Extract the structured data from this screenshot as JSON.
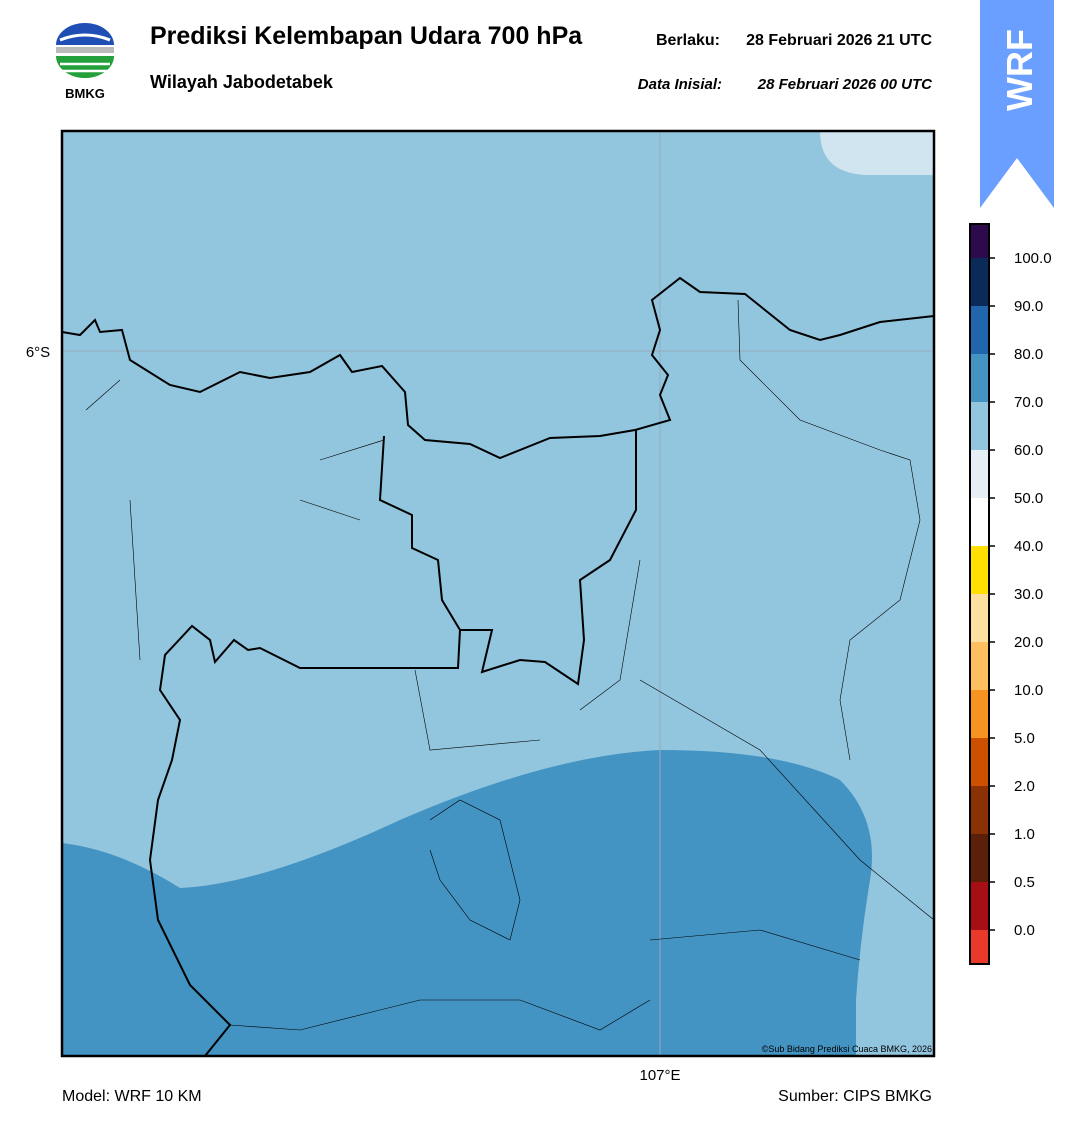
{
  "header": {
    "logo_text": "BMKG",
    "title": "Prediksi Kelembapan Udara 700 hPa",
    "subtitle": "Wilayah Jabodetabek",
    "valid_label": "Berlaku:",
    "valid_time": "28 Februari 2026 21 UTC",
    "init_label": "Data Inisial:",
    "init_time": "28 Februari 2026 00 UTC",
    "badge": "WRF"
  },
  "map": {
    "lat_label": "6°S",
    "lon_label": "107°E",
    "credit": "©Sub Bidang Prediksi Cuaca BMKG, 2026"
  },
  "colorbar": {
    "colors": [
      "#e8392b",
      "#a50f15",
      "#5a200a",
      "#8b3205",
      "#cc5000",
      "#f59420",
      "#fdbf5f",
      "#fde0a0",
      "#ffe000",
      "#ffffff",
      "#e6eef5",
      "#92c5de",
      "#4393c3",
      "#2166ac",
      "#0a2a5a",
      "#2d0a4b"
    ],
    "ticks": [
      {
        "value": 0,
        "label": "0.0"
      },
      {
        "value": 0.5,
        "label": "0.5"
      },
      {
        "value": 1,
        "label": "1.0"
      },
      {
        "value": 2,
        "label": "2.0"
      },
      {
        "value": 5,
        "label": "5.0"
      },
      {
        "value": 10,
        "label": "10.0"
      },
      {
        "value": 20,
        "label": "20.0"
      },
      {
        "value": 30,
        "label": "30.0"
      },
      {
        "value": 40,
        "label": "40.0"
      },
      {
        "value": 50,
        "label": "50.0"
      },
      {
        "value": 60,
        "label": "60.0"
      },
      {
        "value": 70,
        "label": "70.0"
      },
      {
        "value": 80,
        "label": "80.0"
      },
      {
        "value": 90,
        "label": "90.0"
      },
      {
        "value": 100,
        "label": "100.0"
      }
    ]
  },
  "footer": {
    "model": "Model: WRF 10 KM",
    "source": "Sumber: CIPS BMKG"
  }
}
